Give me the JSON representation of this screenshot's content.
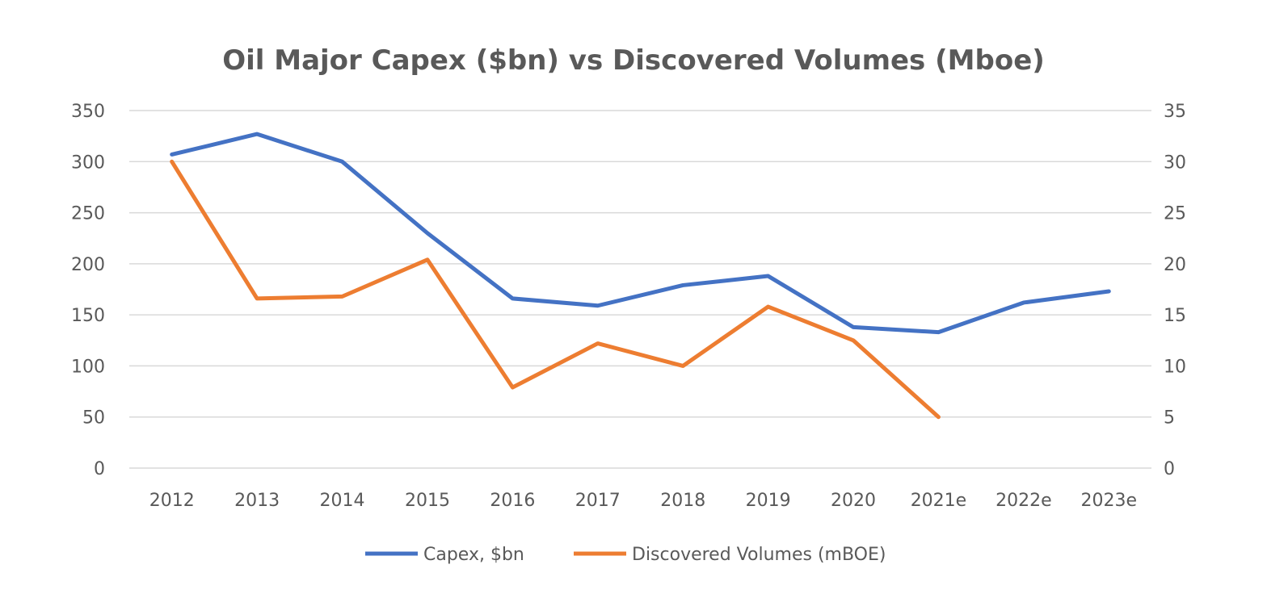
{
  "chart_data": {
    "type": "line",
    "title": "Oil Major Capex ($bn) vs Discovered Volumes (Mboe)",
    "categories": [
      "2012",
      "2013",
      "2014",
      "2015",
      "2016",
      "2017",
      "2018",
      "2019",
      "2020",
      "2021e",
      "2022e",
      "2023e"
    ],
    "y_left": {
      "range": [
        0,
        350
      ],
      "ticks": [
        0,
        50,
        100,
        150,
        200,
        250,
        300,
        350
      ]
    },
    "y_right": {
      "range": [
        0,
        35
      ],
      "ticks": [
        0,
        5,
        10,
        15,
        20,
        25,
        30,
        35
      ]
    },
    "grid": true,
    "legend_position": "bottom",
    "series": [
      {
        "name": "Capex, $bn",
        "axis": "left",
        "color": "#4472C4",
        "values": [
          307,
          327,
          300,
          230,
          166,
          159,
          179,
          188,
          138,
          133,
          162,
          173
        ]
      },
      {
        "name": "Discovered Volumes (mBOE)",
        "axis": "right",
        "color": "#ED7D31",
        "values": [
          30,
          16.6,
          16.8,
          20.4,
          7.9,
          12.2,
          10,
          15.8,
          12.5,
          5,
          null,
          null
        ]
      }
    ]
  }
}
